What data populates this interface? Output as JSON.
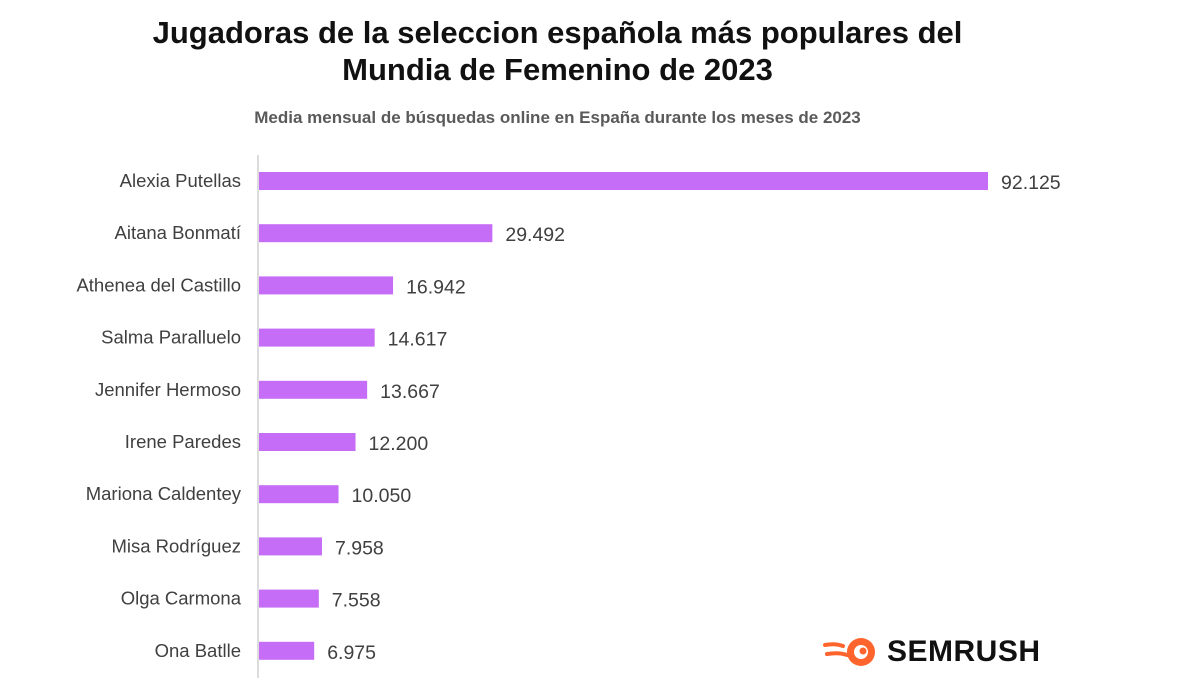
{
  "colors": {
    "bar": "#c66df7",
    "axis": "#d0d0d0",
    "label": "#404040",
    "logo_orange": "#ff642d"
  },
  "brand": {
    "name": "SEMRUSH",
    "icon": "semrush-flame-logo-icon"
  },
  "chart_data": {
    "type": "bar",
    "orientation": "horizontal",
    "title": "Jugadoras de la seleccion española más populares del Mundia de Femenino de 2023",
    "title_lines": [
      "Jugadoras de la seleccion española más populares del",
      "Mundia de Femenino de 2023"
    ],
    "subtitle": "Media mensual de búsquedas online en España durante los meses de 2023",
    "categories": [
      "Alexia Putellas",
      "Aitana Bonmatí",
      "Athenea del Castillo",
      "Salma Paralluelo",
      "Jennifer Hermoso",
      "Irene Paredes",
      "Mariona Caldentey",
      "Misa Rodríguez",
      "Olga Carmona",
      "Ona Batlle"
    ],
    "values": [
      92125,
      29492,
      16942,
      14617,
      13667,
      12200,
      10050,
      7958,
      7558,
      6975
    ],
    "value_labels": [
      "92.125",
      "29.492",
      "16.942",
      "14.617",
      "13.667",
      "12.200",
      "10.050",
      "7.958",
      "7.558",
      "6.975"
    ],
    "xlim": [
      0,
      92125
    ],
    "grid": false,
    "legend": "none"
  }
}
